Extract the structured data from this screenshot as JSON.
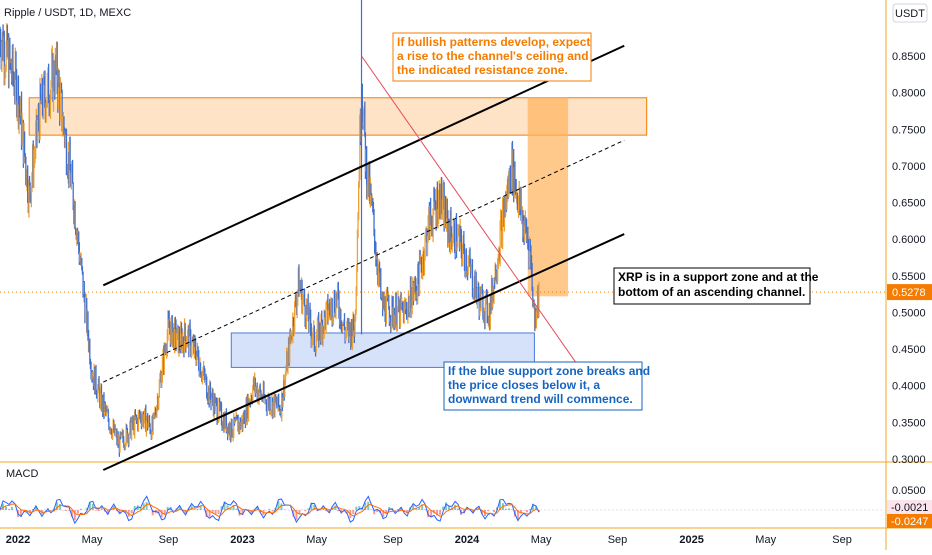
{
  "chart_data": {
    "type": "line",
    "symbol_title": "Ripple / USDT, 1D, MEXC",
    "currency_label": "USDT",
    "price_axis": {
      "ticks": [
        "0.8500",
        "0.8000",
        "0.7500",
        "0.7000",
        "0.6500",
        "0.6000",
        "0.5500",
        "0.5000",
        "0.4500",
        "0.4000",
        "0.3500",
        "0.3000"
      ],
      "range": [
        0.265,
        0.905
      ],
      "scale": "linear"
    },
    "time_axis": {
      "labels": [
        {
          "text": "2022",
          "bold": true
        },
        {
          "text": "May",
          "bold": false
        },
        {
          "text": "Sep",
          "bold": false
        },
        {
          "text": "2023",
          "bold": true
        },
        {
          "text": "May",
          "bold": false
        },
        {
          "text": "Sep",
          "bold": false
        },
        {
          "text": "2024",
          "bold": true
        },
        {
          "text": "May",
          "bold": false
        },
        {
          "text": "Sep",
          "bold": false
        },
        {
          "text": "2025",
          "bold": true
        },
        {
          "text": "May",
          "bold": false
        },
        {
          "text": "Sep",
          "bold": false
        }
      ]
    },
    "price_series": {
      "description_from_axes": "daily close, approximate",
      "t": [
        2021.92,
        2022.0,
        2022.05,
        2022.1,
        2022.17,
        2022.25,
        2022.33,
        2022.38,
        2022.45,
        2022.5,
        2022.55,
        2022.6,
        2022.67,
        2022.72,
        2022.75,
        2022.8,
        2022.85,
        2022.9,
        2022.95,
        2023.0,
        2023.05,
        2023.1,
        2023.17,
        2023.25,
        2023.32,
        2023.38,
        2023.42,
        2023.46,
        2023.5,
        2023.53,
        2023.55,
        2023.58,
        2023.62,
        2023.67,
        2023.72,
        2023.78,
        2023.83,
        2023.88,
        2023.92,
        2023.96,
        2024.0,
        2024.05,
        2024.1,
        2024.15,
        2024.2,
        2024.25,
        2024.28,
        2024.3,
        2024.32
      ],
      "close": [
        0.88,
        0.8,
        0.66,
        0.78,
        0.83,
        0.65,
        0.42,
        0.37,
        0.32,
        0.34,
        0.36,
        0.34,
        0.48,
        0.46,
        0.47,
        0.44,
        0.39,
        0.36,
        0.34,
        0.35,
        0.4,
        0.38,
        0.37,
        0.54,
        0.46,
        0.5,
        0.52,
        0.47,
        0.48,
        0.82,
        0.7,
        0.63,
        0.51,
        0.5,
        0.5,
        0.54,
        0.62,
        0.66,
        0.61,
        0.6,
        0.57,
        0.52,
        0.5,
        0.61,
        0.7,
        0.62,
        0.59,
        0.49,
        0.5278
      ]
    },
    "last_price": {
      "label": "0.5278",
      "value": 0.5278
    },
    "channel": {
      "lower_line": [
        [
          2022.38,
          0.285
        ],
        [
          2024.7,
          0.607
        ]
      ],
      "upper_line": [
        [
          2022.38,
          0.537
        ],
        [
          2024.7,
          0.864
        ]
      ],
      "mid_line": [
        [
          2022.38,
          0.405
        ],
        [
          2024.7,
          0.735
        ]
      ]
    },
    "resistance_zone": {
      "x": [
        2022.05,
        2024.8
      ],
      "y": [
        0.742,
        0.793
      ]
    },
    "support_zone": {
      "x": [
        2022.95,
        2024.3
      ],
      "y": [
        0.425,
        0.472
      ]
    },
    "projection_box": {
      "x": [
        2024.27,
        2024.45
      ],
      "y": [
        0.522,
        0.793
      ]
    },
    "trend_line": [
      [
        2023.53,
        0.85
      ],
      [
        2024.5,
        0.425
      ]
    ],
    "annotations": [
      {
        "id": "bullish",
        "lines": [
          "If bullish patterns develop, expect",
          "a rise to the channel's ceiling and",
          "the indicated resistance zone."
        ],
        "color": "#f57c00"
      },
      {
        "id": "support",
        "lines": [
          "XRP is in a support zone and at the",
          "bottom of an ascending channel."
        ],
        "color": "#000000"
      },
      {
        "id": "breakdown",
        "lines": [
          "If the blue support zone breaks and",
          "the price closes below it, a",
          "downward trend will commence."
        ],
        "color": "#1565c0"
      }
    ],
    "macd": {
      "label": "MACD",
      "ticks": [
        "0.0500",
        "0.0000"
      ],
      "range": [
        -0.04,
        0.075
      ],
      "macd_line_label": "-0.0021",
      "signal_line_label": "-0.0247"
    },
    "colors": {
      "up": "#f0a030",
      "down": "#3f6fd0",
      "orange_zone": "#ffcc99",
      "orange_border": "#f57c00",
      "blue_zone": "#c8d8f8",
      "blue_border": "#4a7be0",
      "trend_red": "#e54b5b",
      "last_price_bg": "#f57c00"
    }
  }
}
